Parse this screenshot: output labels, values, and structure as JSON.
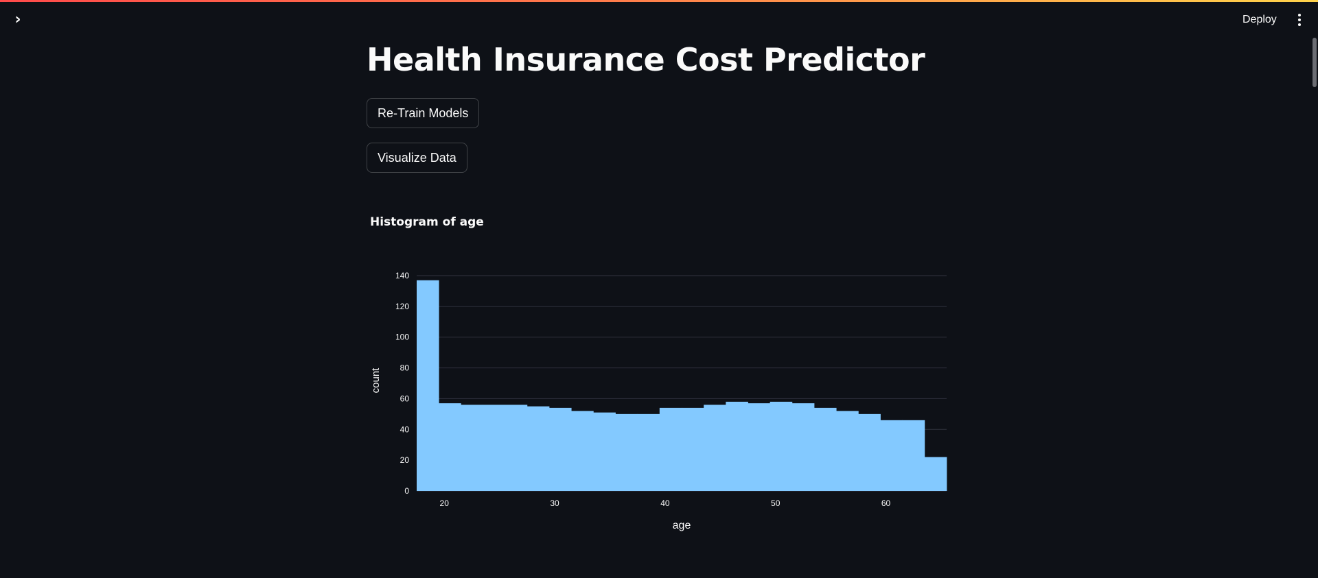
{
  "header": {
    "sidebar_toggle_icon": "chevron-right-icon",
    "deploy_label": "Deploy",
    "menu_icon": "vertical-ellipsis-icon"
  },
  "main": {
    "title": "Health Insurance Cost Predictor",
    "buttons": {
      "retrain_label": "Re-Train Models",
      "visualize_label": "Visualize Data"
    }
  },
  "colors": {
    "background": "#0e1117",
    "bar": "#83c9ff",
    "text": "#fafafa"
  },
  "chart_data": {
    "type": "bar",
    "title": "Histogram of age",
    "xlabel": "age",
    "ylabel": "count",
    "bins": [
      {
        "x0": 17.5,
        "x1": 19.5,
        "count": 137
      },
      {
        "x0": 19.5,
        "x1": 21.5,
        "count": 57
      },
      {
        "x0": 21.5,
        "x1": 23.5,
        "count": 56
      },
      {
        "x0": 23.5,
        "x1": 25.5,
        "count": 56
      },
      {
        "x0": 25.5,
        "x1": 27.5,
        "count": 56
      },
      {
        "x0": 27.5,
        "x1": 29.5,
        "count": 55
      },
      {
        "x0": 29.5,
        "x1": 31.5,
        "count": 54
      },
      {
        "x0": 31.5,
        "x1": 33.5,
        "count": 52
      },
      {
        "x0": 33.5,
        "x1": 35.5,
        "count": 51
      },
      {
        "x0": 35.5,
        "x1": 37.5,
        "count": 50
      },
      {
        "x0": 37.5,
        "x1": 39.5,
        "count": 50
      },
      {
        "x0": 39.5,
        "x1": 41.5,
        "count": 54
      },
      {
        "x0": 41.5,
        "x1": 43.5,
        "count": 54
      },
      {
        "x0": 43.5,
        "x1": 45.5,
        "count": 56
      },
      {
        "x0": 45.5,
        "x1": 47.5,
        "count": 58
      },
      {
        "x0": 47.5,
        "x1": 49.5,
        "count": 57
      },
      {
        "x0": 49.5,
        "x1": 51.5,
        "count": 58
      },
      {
        "x0": 51.5,
        "x1": 53.5,
        "count": 57
      },
      {
        "x0": 53.5,
        "x1": 55.5,
        "count": 54
      },
      {
        "x0": 55.5,
        "x1": 57.5,
        "count": 52
      },
      {
        "x0": 57.5,
        "x1": 59.5,
        "count": 50
      },
      {
        "x0": 59.5,
        "x1": 61.5,
        "count": 46
      },
      {
        "x0": 61.5,
        "x1": 63.5,
        "count": 46
      },
      {
        "x0": 63.5,
        "x1": 65.5,
        "count": 22
      }
    ],
    "xlim": [
      17.5,
      65.5
    ],
    "ylim": [
      0,
      140
    ],
    "xticks": [
      20,
      30,
      40,
      50,
      60
    ],
    "yticks": [
      0,
      20,
      40,
      60,
      80,
      100,
      120,
      140
    ],
    "grid": true,
    "bar_color": "#83c9ff"
  }
}
